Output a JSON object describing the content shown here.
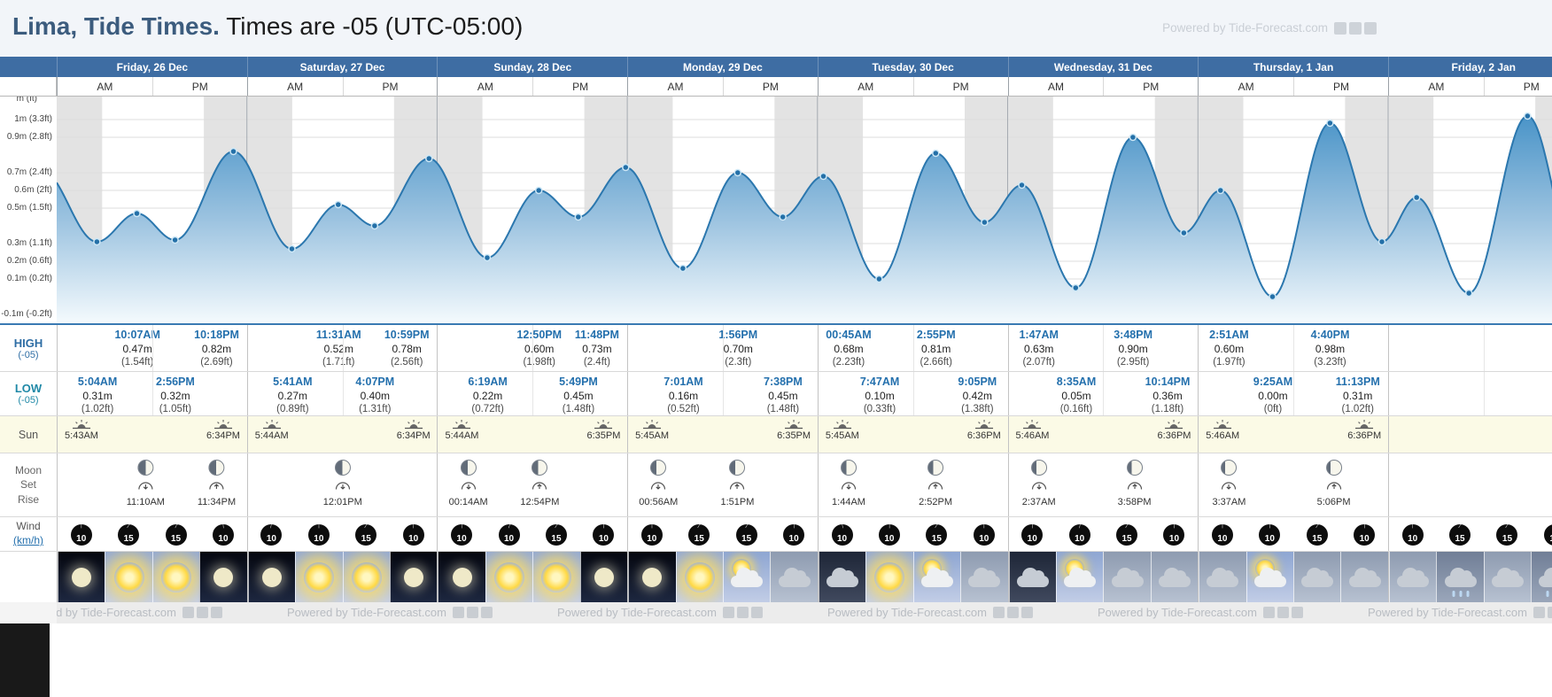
{
  "title": {
    "location": "Lima, Tide Times.",
    "suffix": " Times are -05 (UTC-05:00)"
  },
  "watermark": {
    "text": "Powered by Tide-Forecast.com"
  },
  "header": {
    "am": "AM",
    "pm": "PM"
  },
  "row_labels": {
    "high": "HIGH",
    "high_zone": "(-05)",
    "low": "LOW",
    "low_zone": "(-05)",
    "sun": "Sun",
    "moon_lines": [
      "Moon",
      "Set",
      "Rise"
    ],
    "wind": "Wind",
    "wind_unit": "(km/h)"
  },
  "axis": {
    "unit": "m (ft)",
    "ticks": [
      {
        "v": 1.0,
        "label": "1m (3.3ft)"
      },
      {
        "v": 0.9,
        "label": "0.9m (2.8ft)"
      },
      {
        "v": 0.7,
        "label": "0.7m (2.4ft)"
      },
      {
        "v": 0.6,
        "label": "0.6m (2ft)"
      },
      {
        "v": 0.5,
        "label": "0.5m (1.5ft)"
      },
      {
        "v": 0.3,
        "label": "0.3m (1.1ft)"
      },
      {
        "v": 0.2,
        "label": "0.2m (0.6ft)"
      },
      {
        "v": 0.1,
        "label": "0.1m (0.2ft)"
      },
      {
        "v": -0.1,
        "label": "-0.1m (-0.2ft)"
      }
    ]
  },
  "colors": {
    "header_blue": "#3e6da3",
    "accent_blue": "#2470ad",
    "low_teal": "#2089a7",
    "night_band": "#e3e3e3",
    "sun_row_bg": "#fbfae6",
    "curve_stroke": "#2b77ae"
  },
  "days": [
    {
      "name": "Friday, 26 Dec",
      "partial": false,
      "highs": [
        {
          "time": "10:07AM",
          "m": "0.47m",
          "ft": "(1.54ft)"
        },
        {
          "time": "10:18PM",
          "m": "0.82m",
          "ft": "(2.69ft)"
        }
      ],
      "lows": [
        {
          "time": "5:04AM",
          "m": "0.31m",
          "ft": "(1.02ft)"
        },
        {
          "time": "2:56PM",
          "m": "0.32m",
          "ft": "(1.05ft)"
        }
      ],
      "sunrise": "5:43AM",
      "sunset": "6:34PM",
      "moon": [
        {
          "time": "11:10AM",
          "event": "set",
          "phase": 50
        },
        {
          "time": "11:34PM",
          "event": "rise",
          "phase": 51
        }
      ],
      "wind": [
        {
          "speed": 10,
          "deg": 0
        },
        {
          "speed": 15,
          "deg": 30
        },
        {
          "speed": 15,
          "deg": 25
        },
        {
          "speed": 10,
          "deg": 355
        }
      ],
      "weather": [
        "night",
        "sunny",
        "sunny",
        "night"
      ]
    },
    {
      "name": "Saturday, 27 Dec",
      "partial": false,
      "highs": [
        {
          "time": "11:31AM",
          "m": "0.52m",
          "ft": "(1.71ft)"
        },
        {
          "time": "10:59PM",
          "m": "0.78m",
          "ft": "(2.56ft)"
        }
      ],
      "lows": [
        {
          "time": "5:41AM",
          "m": "0.27m",
          "ft": "(0.89ft)"
        },
        {
          "time": "4:07PM",
          "m": "0.40m",
          "ft": "(1.31ft)"
        }
      ],
      "sunrise": "5:44AM",
      "sunset": "6:34PM",
      "moon": [
        {
          "time": "12:01PM",
          "event": "set",
          "phase": 54
        }
      ],
      "wind": [
        {
          "speed": 10,
          "deg": 10
        },
        {
          "speed": 10,
          "deg": 0
        },
        {
          "speed": 15,
          "deg": 30
        },
        {
          "speed": 10,
          "deg": 0
        }
      ],
      "weather": [
        "night",
        "sunny",
        "sunny",
        "night"
      ]
    },
    {
      "name": "Sunday, 28 Dec",
      "partial": false,
      "highs": [
        {
          "time": "12:50PM",
          "m": "0.60m",
          "ft": "(1.98ft)"
        },
        {
          "time": "11:48PM",
          "m": "0.73m",
          "ft": "(2.4ft)"
        }
      ],
      "lows": [
        {
          "time": "6:19AM",
          "m": "0.22m",
          "ft": "(0.72ft)"
        },
        {
          "time": "5:49PM",
          "m": "0.45m",
          "ft": "(1.48ft)"
        }
      ],
      "sunrise": "5:44AM",
      "sunset": "6:35PM",
      "moon": [
        {
          "time": "00:14AM",
          "event": "set",
          "phase": 57
        },
        {
          "time": "12:54PM",
          "event": "rise",
          "phase": 58
        }
      ],
      "wind": [
        {
          "speed": 10,
          "deg": 0
        },
        {
          "speed": 10,
          "deg": 15
        },
        {
          "speed": 15,
          "deg": 30
        },
        {
          "speed": 10,
          "deg": 0
        }
      ],
      "weather": [
        "night",
        "sunny",
        "sunny",
        "night"
      ]
    },
    {
      "name": "Monday, 29 Dec",
      "partial": false,
      "highs": [
        {
          "time": "1:56PM",
          "m": "0.70m",
          "ft": "(2.3ft)"
        }
      ],
      "lows": [
        {
          "time": "7:01AM",
          "m": "0.16m",
          "ft": "(0.52ft)"
        },
        {
          "time": "7:38PM",
          "m": "0.45m",
          "ft": "(1.48ft)"
        }
      ],
      "sunrise": "5:45AM",
      "sunset": "6:35PM",
      "moon": [
        {
          "time": "00:56AM",
          "event": "set",
          "phase": 61
        },
        {
          "time": "1:51PM",
          "event": "rise",
          "phase": 62
        }
      ],
      "wind": [
        {
          "speed": 10,
          "deg": 0
        },
        {
          "speed": 15,
          "deg": 30
        },
        {
          "speed": 15,
          "deg": 30
        },
        {
          "speed": 10,
          "deg": 0
        }
      ],
      "weather": [
        "night",
        "sunny",
        "partly",
        "cloudy"
      ]
    },
    {
      "name": "Tuesday, 30 Dec",
      "partial": false,
      "highs": [
        {
          "time": "00:45AM",
          "m": "0.68m",
          "ft": "(2.23ft)"
        },
        {
          "time": "2:55PM",
          "m": "0.81m",
          "ft": "(2.66ft)"
        }
      ],
      "lows": [
        {
          "time": "7:47AM",
          "m": "0.10m",
          "ft": "(0.33ft)"
        },
        {
          "time": "9:05PM",
          "m": "0.42m",
          "ft": "(1.38ft)"
        }
      ],
      "sunrise": "5:45AM",
      "sunset": "6:36PM",
      "moon": [
        {
          "time": "1:44AM",
          "event": "set",
          "phase": 65
        },
        {
          "time": "2:52PM",
          "event": "rise",
          "phase": 66
        }
      ],
      "wind": [
        {
          "speed": 10,
          "deg": 350
        },
        {
          "speed": 10,
          "deg": 0
        },
        {
          "speed": 15,
          "deg": 30
        },
        {
          "speed": 10,
          "deg": 0
        }
      ],
      "weather": [
        "cloudy-night",
        "sunny",
        "partly",
        "cloudy"
      ]
    },
    {
      "name": "Wednesday, 31 Dec",
      "partial": false,
      "highs": [
        {
          "time": "1:47AM",
          "m": "0.63m",
          "ft": "(2.07ft)"
        },
        {
          "time": "3:48PM",
          "m": "0.90m",
          "ft": "(2.95ft)"
        }
      ],
      "lows": [
        {
          "time": "8:35AM",
          "m": "0.05m",
          "ft": "(0.16ft)"
        },
        {
          "time": "10:14PM",
          "m": "0.36m",
          "ft": "(1.18ft)"
        }
      ],
      "sunrise": "5:46AM",
      "sunset": "6:36PM",
      "moon": [
        {
          "time": "2:37AM",
          "event": "set",
          "phase": 70
        },
        {
          "time": "3:58PM",
          "event": "rise",
          "phase": 71
        }
      ],
      "wind": [
        {
          "speed": 10,
          "deg": 0
        },
        {
          "speed": 10,
          "deg": 10
        },
        {
          "speed": 15,
          "deg": 30
        },
        {
          "speed": 10,
          "deg": 0
        }
      ],
      "weather": [
        "cloudy-night",
        "partly",
        "cloudy",
        "cloudy"
      ]
    },
    {
      "name": "Thursday, 1 Jan",
      "partial": false,
      "highs": [
        {
          "time": "2:51AM",
          "m": "0.60m",
          "ft": "(1.97ft)"
        },
        {
          "time": "4:40PM",
          "m": "0.98m",
          "ft": "(3.23ft)"
        }
      ],
      "lows": [
        {
          "time": "9:25AM",
          "m": "0.00m",
          "ft": "(0ft)"
        },
        {
          "time": "11:13PM",
          "m": "0.31m",
          "ft": "(1.02ft)"
        }
      ],
      "sunrise": "5:46AM",
      "sunset": "6:36PM",
      "moon": [
        {
          "time": "3:37AM",
          "event": "set",
          "phase": 75
        },
        {
          "time": "5:06PM",
          "event": "rise",
          "phase": 76
        }
      ],
      "wind": [
        {
          "speed": 10,
          "deg": 0
        },
        {
          "speed": 10,
          "deg": 0
        },
        {
          "speed": 15,
          "deg": 30
        },
        {
          "speed": 10,
          "deg": 0
        }
      ],
      "weather": [
        "cloudy",
        "partly",
        "cloudy",
        "cloudy"
      ]
    },
    {
      "name": "Friday, 2 Jan",
      "partial": true,
      "highs": [],
      "lows": [],
      "sunrise": "",
      "sunset": "",
      "moon": [],
      "wind": [
        {
          "speed": 10,
          "deg": 0
        },
        {
          "speed": 15,
          "deg": 30
        },
        {
          "speed": 15,
          "deg": 30
        },
        {
          "speed": 10,
          "deg": 0
        }
      ],
      "weather": [
        "cloudy",
        "rain",
        "cloudy",
        "rain"
      ]
    }
  ],
  "chart_data": {
    "type": "area",
    "title": "Tide height curve, Lima",
    "ylabel": "m (ft)",
    "ylim": [
      -0.15,
      1.13
    ],
    "hours_span": 192,
    "sunrise_hour": 5.73,
    "sunset_hour": 18.57,
    "points": [
      {
        "t": -2.0,
        "h": 0.72,
        "kind": "edge"
      },
      {
        "t": 5.07,
        "h": 0.31,
        "kind": "low"
      },
      {
        "t": 10.12,
        "h": 0.47,
        "kind": "high"
      },
      {
        "t": 14.93,
        "h": 0.32,
        "kind": "low"
      },
      {
        "t": 22.3,
        "h": 0.82,
        "kind": "high"
      },
      {
        "t": 29.68,
        "h": 0.27,
        "kind": "low"
      },
      {
        "t": 35.52,
        "h": 0.52,
        "kind": "high"
      },
      {
        "t": 40.12,
        "h": 0.4,
        "kind": "low"
      },
      {
        "t": 46.98,
        "h": 0.78,
        "kind": "high"
      },
      {
        "t": 54.32,
        "h": 0.22,
        "kind": "low"
      },
      {
        "t": 60.83,
        "h": 0.6,
        "kind": "high"
      },
      {
        "t": 65.82,
        "h": 0.45,
        "kind": "low"
      },
      {
        "t": 71.8,
        "h": 0.73,
        "kind": "high"
      },
      {
        "t": 79.02,
        "h": 0.16,
        "kind": "low"
      },
      {
        "t": 85.93,
        "h": 0.7,
        "kind": "high"
      },
      {
        "t": 91.63,
        "h": 0.45,
        "kind": "low"
      },
      {
        "t": 96.75,
        "h": 0.68,
        "kind": "high"
      },
      {
        "t": 103.78,
        "h": 0.1,
        "kind": "low"
      },
      {
        "t": 110.92,
        "h": 0.81,
        "kind": "high"
      },
      {
        "t": 117.08,
        "h": 0.42,
        "kind": "low"
      },
      {
        "t": 121.78,
        "h": 0.63,
        "kind": "high"
      },
      {
        "t": 128.58,
        "h": 0.05,
        "kind": "low"
      },
      {
        "t": 135.8,
        "h": 0.9,
        "kind": "high"
      },
      {
        "t": 142.23,
        "h": 0.36,
        "kind": "low"
      },
      {
        "t": 146.85,
        "h": 0.6,
        "kind": "high"
      },
      {
        "t": 153.42,
        "h": 0.0,
        "kind": "low"
      },
      {
        "t": 160.67,
        "h": 0.98,
        "kind": "high"
      },
      {
        "t": 167.22,
        "h": 0.31,
        "kind": "low"
      },
      {
        "t": 171.6,
        "h": 0.56,
        "kind": "high"
      },
      {
        "t": 178.2,
        "h": 0.02,
        "kind": "low"
      },
      {
        "t": 185.6,
        "h": 1.02,
        "kind": "high"
      },
      {
        "t": 192.4,
        "h": 0.1,
        "kind": "edge"
      }
    ]
  }
}
